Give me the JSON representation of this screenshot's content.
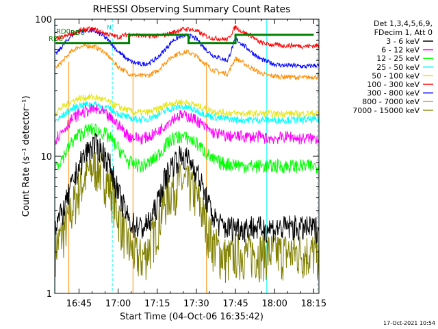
{
  "chart_data": {
    "type": "line",
    "title": "RHESSI Observing Summary Count Rates",
    "xlabel": "Start Time (04-Oct-06 16:35:42)",
    "ylabel": "Count Rate (s⁻¹ detector⁻¹)",
    "yscale": "log",
    "ylim": [
      1,
      100
    ],
    "xlim": [
      16.595,
      18.2833
    ],
    "x_ticks": [
      "16:45",
      "17:00",
      "17:15",
      "17:30",
      "17:45",
      "18:00",
      "18:15"
    ],
    "y_tick_labels": [
      "1",
      "10",
      "100"
    ],
    "legend_header": [
      "Det 1,3,4,5,6,9,",
      "FDecim 1, Att 0"
    ],
    "legend_position": "right",
    "timestamp": "17-Oct-2021 10:54",
    "annotations": {
      "rd0_top": "RD0",
      "n_flag": "N",
      "rd0_mid": "RD0",
      "rd6": "RD6"
    },
    "grid": false,
    "series": [
      {
        "name": "3 - 6 keV",
        "color": "#000000",
        "x": [
          16.6,
          16.65,
          16.7,
          16.75,
          16.8,
          16.85,
          16.9,
          16.95,
          17.0,
          17.07,
          17.1,
          17.15,
          17.2,
          17.25,
          17.3,
          17.35,
          17.4,
          17.45,
          17.5,
          17.55,
          17.6,
          17.65,
          17.7,
          17.75,
          17.8,
          17.85,
          17.9,
          17.95,
          18.0,
          18.05,
          18.1,
          18.15,
          18.2,
          18.25
        ],
        "values": [
          3.2,
          4.0,
          6.0,
          8.5,
          11.0,
          12.2,
          11.0,
          8.5,
          5.5,
          3.4,
          3.2,
          3.0,
          3.3,
          4.5,
          7.0,
          9.0,
          10.0,
          9.5,
          8.0,
          5.5,
          3.8,
          3.2,
          3.0,
          3.1,
          3.0,
          3.1,
          3.0,
          3.0,
          3.0,
          3.0,
          3.1,
          3.0,
          3.0,
          3.0
        ]
      },
      {
        "name": "6 - 12 keV",
        "color": "#ff00ff",
        "x": [
          16.6,
          16.65,
          16.7,
          16.75,
          16.8,
          16.85,
          16.9,
          16.95,
          17.0,
          17.07,
          17.1,
          17.15,
          17.2,
          17.25,
          17.3,
          17.35,
          17.4,
          17.45,
          17.5,
          17.55,
          17.6,
          17.65,
          17.7,
          17.75,
          17.8,
          17.85,
          17.9,
          17.95,
          18.0,
          18.05,
          18.1,
          18.15,
          18.2,
          18.25
        ],
        "values": [
          13.5,
          15.5,
          18.5,
          20.5,
          21.5,
          22.0,
          21.0,
          19.0,
          17.0,
          14.0,
          13.8,
          13.5,
          14.0,
          15.0,
          17.0,
          19.0,
          20.0,
          19.5,
          18.5,
          16.5,
          15.0,
          14.5,
          14.0,
          14.0,
          14.0,
          13.8,
          14.0,
          13.5,
          13.5,
          13.8,
          14.0,
          13.5,
          13.5,
          13.5
        ]
      },
      {
        "name": "12 - 25 keV",
        "color": "#00ff00",
        "x": [
          16.6,
          16.65,
          16.7,
          16.75,
          16.8,
          16.85,
          16.9,
          16.95,
          17.0,
          17.07,
          17.1,
          17.15,
          17.2,
          17.25,
          17.3,
          17.35,
          17.4,
          17.45,
          17.5,
          17.55,
          17.6,
          17.65,
          17.7,
          17.75,
          17.8,
          17.85,
          17.9,
          17.95,
          18.0,
          18.05,
          18.1,
          18.15,
          18.2,
          18.25
        ],
        "values": [
          8.5,
          10.0,
          12.5,
          14.5,
          15.5,
          15.8,
          15.0,
          13.5,
          11.5,
          9.0,
          8.8,
          8.5,
          9.0,
          10.0,
          12.0,
          13.5,
          14.0,
          13.5,
          12.5,
          11.0,
          9.5,
          9.0,
          8.8,
          8.8,
          8.5,
          8.5,
          8.5,
          8.5,
          8.5,
          8.5,
          8.5,
          8.5,
          8.5,
          8.5
        ]
      },
      {
        "name": "25 - 50 keV",
        "color": "#00ffff",
        "x": [
          16.6,
          16.65,
          16.7,
          16.75,
          16.8,
          16.85,
          16.9,
          16.95,
          17.0,
          17.07,
          17.1,
          17.15,
          17.2,
          17.25,
          17.3,
          17.35,
          17.4,
          17.45,
          17.5,
          17.55,
          17.6,
          17.65,
          17.7,
          17.75,
          17.8,
          17.85,
          17.9,
          17.95,
          18.0,
          18.05,
          18.1,
          18.15,
          18.2,
          18.25
        ],
        "values": [
          18.0,
          20.0,
          22.0,
          23.5,
          24.0,
          24.0,
          23.0,
          22.0,
          20.5,
          19.0,
          18.8,
          18.5,
          19.0,
          20.0,
          21.5,
          22.5,
          23.0,
          22.5,
          21.5,
          20.5,
          19.5,
          19.0,
          18.8,
          18.5,
          18.5,
          18.5,
          18.5,
          18.5,
          18.3,
          18.5,
          18.5,
          18.3,
          18.5,
          18.5
        ]
      },
      {
        "name": "50 - 100 keV",
        "color": "#e6e619",
        "x": [
          16.6,
          16.65,
          16.7,
          16.75,
          16.8,
          16.85,
          16.9,
          16.95,
          17.0,
          17.07,
          17.1,
          17.15,
          17.2,
          17.25,
          17.3,
          17.35,
          17.4,
          17.45,
          17.5,
          17.55,
          17.6,
          17.65,
          17.7,
          17.75,
          17.8,
          17.85,
          17.9,
          17.95,
          18.0,
          18.05,
          18.1,
          18.15,
          18.2,
          18.25
        ],
        "values": [
          21.0,
          23.0,
          25.0,
          26.5,
          27.0,
          27.0,
          26.0,
          24.5,
          23.0,
          21.5,
          21.0,
          20.8,
          21.0,
          22.0,
          23.5,
          24.5,
          25.0,
          24.5,
          23.5,
          22.5,
          21.5,
          21.0,
          20.8,
          20.5,
          20.5,
          20.5,
          20.5,
          20.5,
          20.3,
          20.5,
          20.5,
          20.3,
          20.5,
          20.5
        ]
      },
      {
        "name": "100 - 300 keV",
        "color": "#ff0000",
        "x": [
          16.6,
          16.65,
          16.7,
          16.75,
          16.8,
          16.85,
          16.9,
          16.95,
          17.0,
          17.07,
          17.1,
          17.15,
          17.2,
          17.25,
          17.3,
          17.35,
          17.4,
          17.45,
          17.5,
          17.55,
          17.6,
          17.65,
          17.7,
          17.75,
          17.8,
          17.85,
          17.9,
          17.95,
          18.0,
          18.05,
          18.1,
          18.15,
          18.2,
          18.25
        ],
        "values": [
          72.0,
          74.0,
          78.0,
          82.0,
          85.0,
          84.0,
          80.0,
          77.0,
          74.0,
          78.0,
          77.0,
          76.0,
          75.0,
          75.5,
          77.0,
          80.0,
          84.0,
          85.0,
          82.0,
          76.0,
          73.0,
          72.0,
          71.0,
          88.0,
          80.0,
          76.0,
          68.0,
          66.0,
          65.0,
          64.0,
          64.5,
          64.0,
          63.5,
          64.0
        ]
      },
      {
        "name": "300 - 800 keV",
        "color": "#0000ff",
        "x": [
          16.6,
          16.65,
          16.7,
          16.75,
          16.8,
          16.85,
          16.9,
          16.95,
          17.0,
          17.07,
          17.1,
          17.15,
          17.2,
          17.25,
          17.3,
          17.35,
          17.4,
          17.45,
          17.5,
          17.55,
          17.6,
          17.65,
          17.7,
          17.75,
          17.8,
          17.85,
          17.9,
          17.95,
          18.0,
          18.05,
          18.1,
          18.15,
          18.2,
          18.25
        ],
        "values": [
          55.0,
          65.0,
          76.0,
          82.0,
          83.0,
          82.0,
          76.0,
          68.0,
          58.0,
          50.0,
          48.0,
          47.0,
          48.0,
          52.0,
          60.0,
          70.0,
          75.0,
          76.0,
          72.0,
          62.0,
          55.0,
          52.0,
          50.0,
          72.0,
          65.0,
          58.0,
          52.0,
          49.0,
          47.0,
          46.0,
          46.0,
          45.5,
          45.0,
          46.0
        ]
      },
      {
        "name": "800 - 7000 keV",
        "color": "#ff8c00",
        "x": [
          16.6,
          16.65,
          16.7,
          16.75,
          16.8,
          16.85,
          16.9,
          16.95,
          17.0,
          17.07,
          17.1,
          17.15,
          17.2,
          17.25,
          17.3,
          17.35,
          17.4,
          17.45,
          17.5,
          17.55,
          17.6,
          17.65,
          17.7,
          17.75,
          17.8,
          17.85,
          17.9,
          17.95,
          18.0,
          18.05,
          18.1,
          18.15,
          18.2,
          18.25
        ],
        "values": [
          44.0,
          50.0,
          58.0,
          63.0,
          64.0,
          63.0,
          59.0,
          52.0,
          45.0,
          40.0,
          39.0,
          38.5,
          39.0,
          42.0,
          48.0,
          54.0,
          57.0,
          57.5,
          54.0,
          48.0,
          43.0,
          41.0,
          40.0,
          52.0,
          48.0,
          44.0,
          41.0,
          39.0,
          38.5,
          38.0,
          38.0,
          37.5,
          37.5,
          38.0
        ]
      },
      {
        "name": "7000 - 15000 keV",
        "color": "#808000",
        "x": [
          16.6,
          16.65,
          16.7,
          16.75,
          16.8,
          16.85,
          16.9,
          16.95,
          17.0,
          17.07,
          17.1,
          17.15,
          17.2,
          17.25,
          17.3,
          17.35,
          17.4,
          17.45,
          17.5,
          17.55,
          17.6,
          17.65,
          17.7,
          17.75,
          17.8,
          17.85,
          17.9,
          17.95,
          18.0,
          18.05,
          18.1,
          18.15,
          18.2,
          18.25
        ],
        "values": [
          2.2,
          2.8,
          4.0,
          5.8,
          7.5,
          8.6,
          7.8,
          6.0,
          3.8,
          2.2,
          2.0,
          1.8,
          2.2,
          3.2,
          4.8,
          6.0,
          6.5,
          6.2,
          5.2,
          3.6,
          2.4,
          2.0,
          1.8,
          2.0,
          2.0,
          2.0,
          2.0,
          2.0,
          2.0,
          2.0,
          2.0,
          2.0,
          2.0,
          2.0
        ]
      }
    ],
    "attenuator_flag": {
      "name": "RD6",
      "color": "#008000",
      "x": [
        16.6,
        16.7,
        16.85,
        17.0,
        17.07,
        17.15,
        17.25,
        17.35,
        17.45,
        17.58,
        17.75,
        17.9,
        18.05,
        18.25
      ],
      "values": [
        67,
        67,
        67,
        67,
        77,
        77,
        77,
        77,
        67,
        67,
        77,
        77,
        77,
        77
      ]
    },
    "boundary_lines": [
      {
        "color": "#00ffff",
        "style": "solid",
        "x": 16.597
      },
      {
        "color": "#00ffff",
        "style": "dashed",
        "x": 16.963
      },
      {
        "color": "#00ffff",
        "style": "solid",
        "x": 17.95
      },
      {
        "color": "#00ffff",
        "style": "dashed",
        "x": 18.275
      }
    ],
    "orange_gate_lines": [
      16.685,
      17.095,
      17.565
    ]
  }
}
